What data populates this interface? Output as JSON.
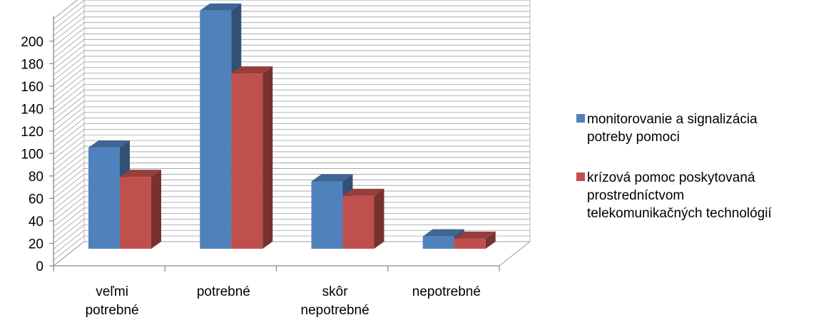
{
  "chart_data": {
    "type": "bar",
    "categories": [
      "veľmi\npotrebné",
      "potrebné",
      "skôr\nnepotrebné",
      "nepotrebné"
    ],
    "series": [
      {
        "name": "monitorovanie a signalizácia\npotreby pomoci",
        "values": [
          90,
          212,
          60,
          11
        ],
        "color": "#4f81bd"
      },
      {
        "name": "krízová pomoc poskytovaná\nprostredníctvom\ntelekomunikačných technológií",
        "values": [
          64,
          156,
          47,
          9
        ],
        "color": "#c0504d"
      }
    ],
    "y_ticks": [
      "0",
      "20",
      "40",
      "60",
      "80",
      "100",
      "120",
      "140",
      "160",
      "180",
      "200"
    ],
    "ylim": [
      0,
      220
    ],
    "grid": true,
    "legend_position": "right",
    "style": "3d-clustered-column"
  }
}
